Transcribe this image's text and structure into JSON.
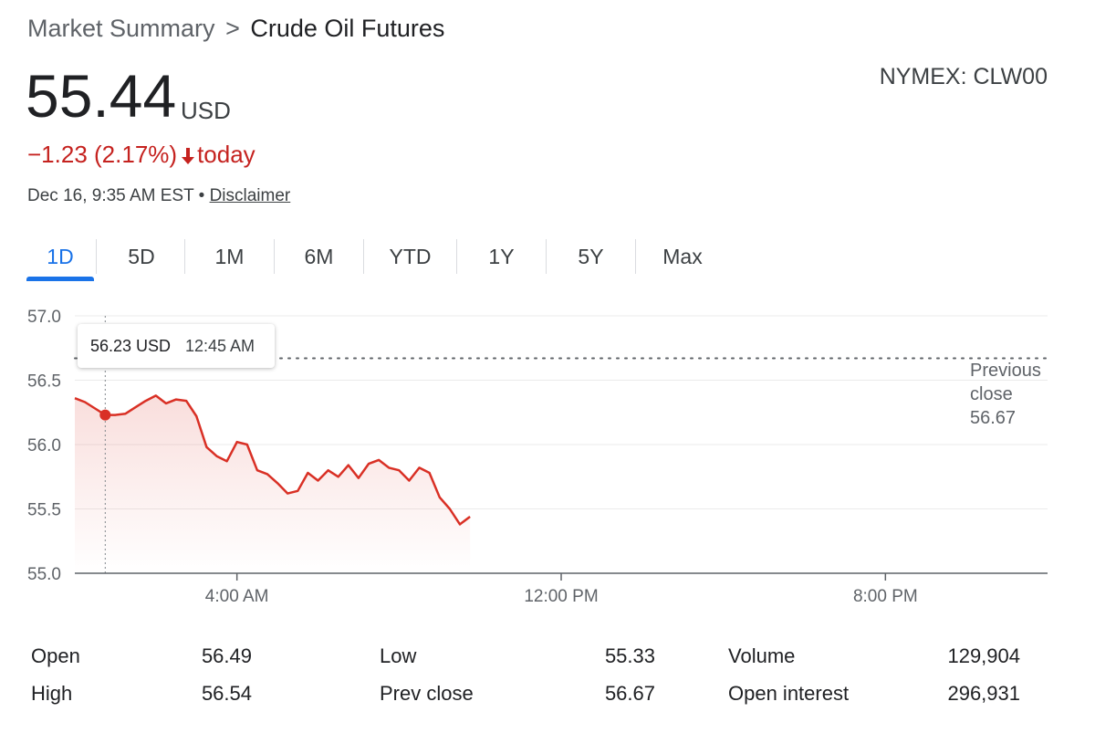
{
  "breadcrumb": {
    "parent": "Market Summary",
    "separator": ">",
    "current": "Crude Oil Futures"
  },
  "ticker": "NYMEX: CLW00",
  "price": {
    "value": "55.44",
    "currency": "USD"
  },
  "change": {
    "text": "−1.23 (2.17%)",
    "period": "today",
    "direction": "down",
    "color": "#c5221f"
  },
  "timestamp": {
    "text": "Dec 16, 9:35 AM EST",
    "separator": "•",
    "link": "Disclaimer"
  },
  "tabs": [
    {
      "label": "1D",
      "active": true
    },
    {
      "label": "5D",
      "active": false
    },
    {
      "label": "1M",
      "active": false
    },
    {
      "label": "6M",
      "active": false
    },
    {
      "label": "YTD",
      "active": false
    },
    {
      "label": "1Y",
      "active": false
    },
    {
      "label": "5Y",
      "active": false
    },
    {
      "label": "Max",
      "active": false
    }
  ],
  "tooltip": {
    "price": "56.23 USD",
    "time": "12:45 AM"
  },
  "previous_close": {
    "line1": "Previous",
    "line2": "close",
    "value": "56.67"
  },
  "chart_data": {
    "type": "line",
    "title": "",
    "xlabel": "",
    "ylabel": "",
    "ylim": [
      55.0,
      57.0
    ],
    "yticks": [
      "57.0",
      "56.5",
      "56.0",
      "55.5",
      "55.0"
    ],
    "xlim_hours": [
      0,
      24
    ],
    "xticks": [
      {
        "label": "4:00 AM",
        "hour": 4
      },
      {
        "label": "12:00 PM",
        "hour": 12
      },
      {
        "label": "8:00 PM",
        "hour": 20
      }
    ],
    "grid": true,
    "line_color": "#d93025",
    "previous_close": 56.67,
    "highlight": {
      "hour": 0.75,
      "value": 56.23
    },
    "series": [
      {
        "x": [
          0.0,
          0.25,
          0.5,
          0.75,
          1.0,
          1.25,
          1.5,
          1.75,
          2.0,
          2.25,
          2.5,
          2.75,
          3.0,
          3.25,
          3.5,
          3.75,
          4.0,
          4.25,
          4.5,
          4.75,
          5.0,
          5.25,
          5.5,
          5.75,
          6.0,
          6.25,
          6.5,
          6.75,
          7.0,
          7.25,
          7.5,
          7.75,
          8.0,
          8.25,
          8.5,
          8.75,
          9.0,
          9.25,
          9.5,
          9.75
        ],
        "y": [
          56.36,
          56.33,
          56.28,
          56.23,
          56.23,
          56.24,
          56.29,
          56.34,
          56.38,
          56.32,
          56.35,
          56.34,
          56.22,
          55.98,
          55.91,
          55.87,
          56.02,
          56.0,
          55.8,
          55.77,
          55.7,
          55.62,
          55.64,
          55.78,
          55.72,
          55.8,
          55.75,
          55.84,
          55.74,
          55.85,
          55.88,
          55.82,
          55.8,
          55.72,
          55.82,
          55.78,
          55.59,
          55.5,
          55.38,
          55.44
        ]
      }
    ]
  },
  "stats": [
    {
      "label": "Open",
      "value": "56.49"
    },
    {
      "label": "High",
      "value": "56.54"
    },
    {
      "label": "Low",
      "value": "55.33"
    },
    {
      "label": "Prev close",
      "value": "56.67"
    },
    {
      "label": "Volume",
      "value": "129,904"
    },
    {
      "label": "Open interest",
      "value": "296,931"
    }
  ]
}
